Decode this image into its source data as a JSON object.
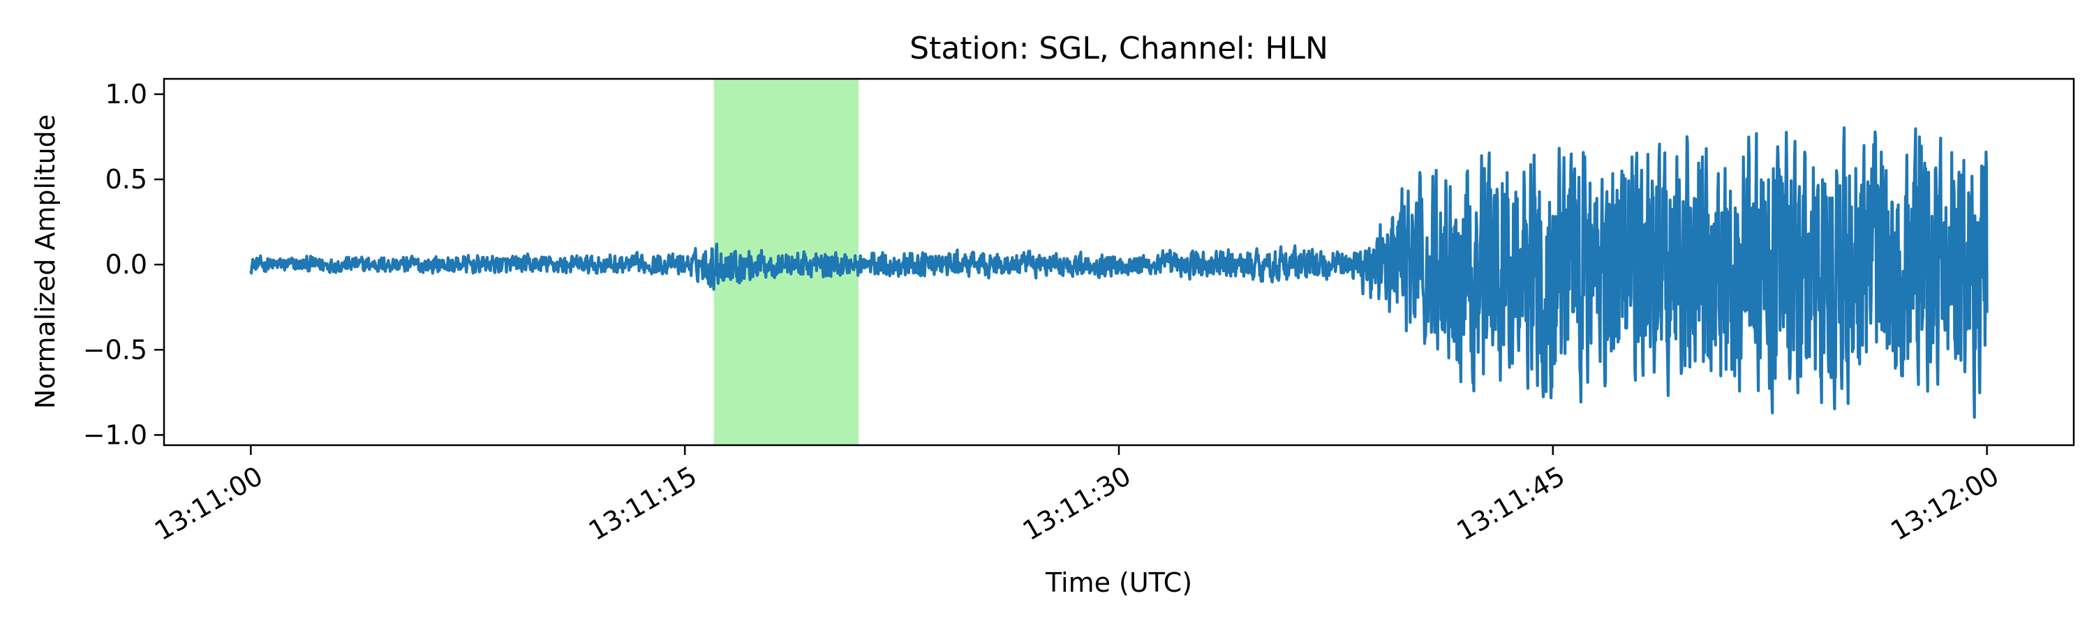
{
  "chart_data": {
    "type": "line",
    "title": "Station: SGL, Channel: HLN",
    "xlabel": "Time (UTC)",
    "ylabel": "Normalized Amplitude",
    "x_ticks": [
      {
        "t": 0,
        "label": "13:11:00"
      },
      {
        "t": 15,
        "label": "13:11:15"
      },
      {
        "t": 30,
        "label": "13:11:30"
      },
      {
        "t": 45,
        "label": "13:11:45"
      },
      {
        "t": 60,
        "label": "13:12:00"
      }
    ],
    "y_ticks": [
      {
        "v": -1.0,
        "label": "−1.0"
      },
      {
        "v": -0.5,
        "label": "−0.5"
      },
      {
        "v": 0.0,
        "label": "0.0"
      },
      {
        "v": 0.5,
        "label": "0.5"
      },
      {
        "v": 1.0,
        "label": "1.0"
      }
    ],
    "xlim": [
      "13:10:57",
      "13:12:03"
    ],
    "ylim": [
      -1.06,
      1.09
    ],
    "grid": false,
    "legend": "none",
    "highlight_span": {
      "x0": "13:11:16",
      "x1": "13:11:21",
      "color": "#b2f2b0"
    },
    "series": [
      {
        "color": "#1f77b4",
        "x_start": "13:11:00",
        "x_end": "13:12:00",
        "envelope": [
          {
            "t": "13:11:00",
            "amp": 0.06
          },
          {
            "t": "13:11:15",
            "amp": 0.08
          },
          {
            "t": "13:11:16",
            "amp": 0.18
          },
          {
            "t": "13:11:18",
            "amp": 0.1
          },
          {
            "t": "13:11:21",
            "amp": 0.1
          },
          {
            "t": "13:11:30",
            "amp": 0.09
          },
          {
            "t": "13:11:36",
            "amp": 0.14
          },
          {
            "t": "13:11:38",
            "amp": 0.09
          },
          {
            "t": "13:11:40",
            "amp": 0.6
          },
          {
            "t": "13:11:42",
            "amp": 0.85
          },
          {
            "t": "13:11:50",
            "amp": 0.95
          },
          {
            "t": "13:12:00",
            "amp": 1.0
          }
        ]
      }
    ]
  }
}
